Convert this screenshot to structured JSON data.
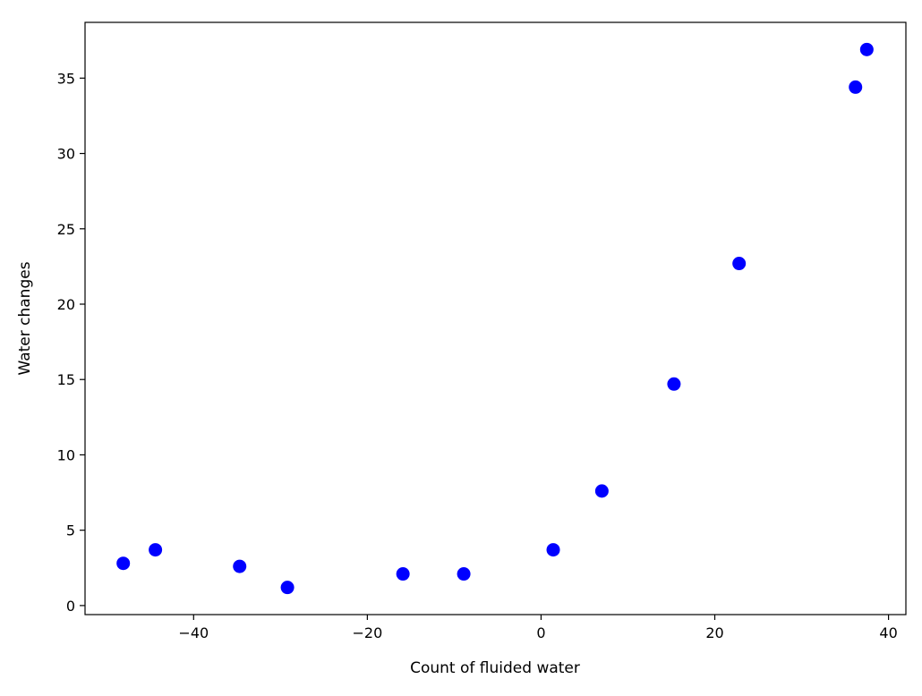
{
  "chart_data": {
    "type": "scatter",
    "title": "",
    "xlabel": "Count of fluided water",
    "ylabel": "Water changes",
    "xlim": [
      -52.5,
      42
    ],
    "ylim": [
      -0.6,
      38.7
    ],
    "xticks": [
      -40,
      -20,
      0,
      20,
      40
    ],
    "xtick_labels": [
      "−40",
      "−20",
      "0",
      "20",
      "40"
    ],
    "yticks": [
      0,
      5,
      10,
      15,
      20,
      25,
      30,
      35
    ],
    "ytick_labels": [
      "0",
      "5",
      "10",
      "15",
      "20",
      "25",
      "30",
      "35"
    ],
    "grid": false,
    "marker_color": "#0000ff",
    "points": [
      {
        "x": -48.1,
        "y": 2.8
      },
      {
        "x": -44.4,
        "y": 3.7
      },
      {
        "x": -34.7,
        "y": 2.6
      },
      {
        "x": -29.2,
        "y": 1.2
      },
      {
        "x": -15.9,
        "y": 2.1
      },
      {
        "x": -8.9,
        "y": 2.1
      },
      {
        "x": 1.4,
        "y": 3.7
      },
      {
        "x": 7.0,
        "y": 7.6
      },
      {
        "x": 15.3,
        "y": 14.7
      },
      {
        "x": 22.8,
        "y": 22.7
      },
      {
        "x": 36.2,
        "y": 34.4
      },
      {
        "x": 37.5,
        "y": 36.9
      }
    ]
  }
}
